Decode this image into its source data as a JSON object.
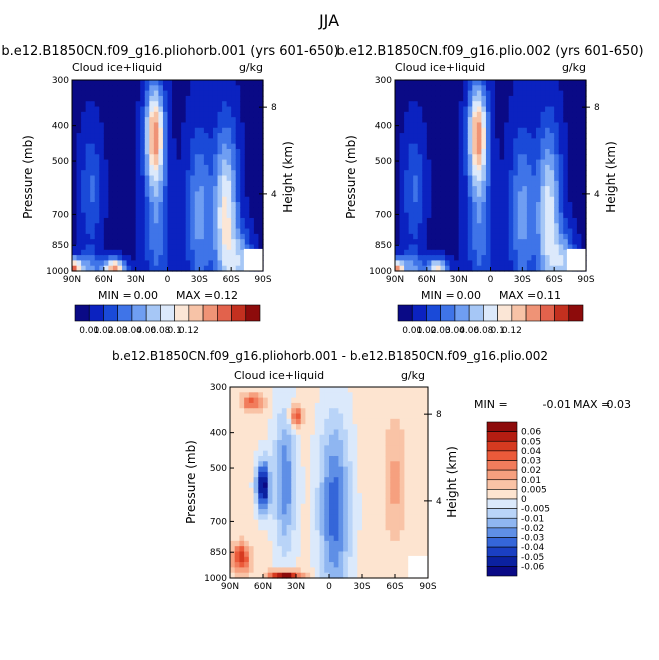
{
  "figure": {
    "title": "JJA",
    "unit": "g/kg",
    "field_name": "Cloud ice+liquid"
  },
  "chart_data": [
    {
      "type": "heatmap",
      "title": "b.e12.B1850CN.f09_g16.pliohorb.001 (yrs 601-650)",
      "subtitle": "Cloud ice+liquid",
      "unit_label": "g/kg",
      "xlabel": "",
      "ylabel": "Pressure (mb)",
      "y2label": "Height (km)",
      "x_ticks": [
        "90N",
        "60N",
        "30N",
        "0",
        "30S",
        "60S",
        "90S"
      ],
      "x_values": [
        90,
        60,
        30,
        0,
        -30,
        -60,
        -90
      ],
      "y_ticks": [
        "300",
        "400",
        "500",
        "700",
        "850",
        "1000"
      ],
      "y_values": [
        300,
        400,
        500,
        700,
        850,
        1000
      ],
      "y2_ticks": [
        "8",
        "4"
      ],
      "y2_pressure": [
        356,
        615
      ],
      "ylim": [
        300,
        1000
      ],
      "xlim": [
        90,
        -90
      ],
      "stats": {
        "min_label": "MIN =",
        "min": "0.00",
        "max_label": "MAX =",
        "max": "0.12"
      },
      "colorbar": {
        "levels": [
          "0.01",
          "0.02",
          "0.03",
          "0.04",
          "0.06",
          "0.08",
          "0.1",
          "0.12"
        ],
        "colors": [
          "#0a0a86",
          "#0b22c0",
          "#1a4ad8",
          "#3f74e8",
          "#6f9ef2",
          "#a6c7f6",
          "#dce9fb",
          "#fbe6d6",
          "#f7c3a7",
          "#ef9376",
          "#e2624c",
          "#c3301f",
          "#8d0b0b"
        ]
      },
      "features": [
        {
          "lat": 75,
          "p": 1000,
          "w": 12,
          "h": 60,
          "v": 0.3
        },
        {
          "lat": 72,
          "p": 600,
          "w": 10,
          "h": 220,
          "v": 0.2
        },
        {
          "lat": 50,
          "p": 985,
          "w": 10,
          "h": 35,
          "v": 0.75
        },
        {
          "lat": 12,
          "p": 420,
          "w": 9,
          "h": 180,
          "v": 0.72
        },
        {
          "lat": 10,
          "p": 750,
          "w": 12,
          "h": 260,
          "v": 0.25
        },
        {
          "lat": -30,
          "p": 700,
          "w": 12,
          "h": 320,
          "v": 0.3
        },
        {
          "lat": -55,
          "p": 720,
          "w": 11,
          "h": 330,
          "v": 0.55
        },
        {
          "lat": -70,
          "p": 950,
          "w": 10,
          "h": 110,
          "v": 0.35
        },
        {
          "lat": 88,
          "p": 990,
          "w": 6,
          "h": 40,
          "v": 0.7
        }
      ]
    },
    {
      "type": "heatmap",
      "title": "b.e12.B1850CN.f09_g16.plio.002 (yrs 601-650)",
      "subtitle": "Cloud ice+liquid",
      "unit_label": "g/kg",
      "xlabel": "",
      "ylabel": "Pressure (mb)",
      "y2label": "Height (km)",
      "x_ticks": [
        "90N",
        "60N",
        "30N",
        "0",
        "30S",
        "60S",
        "90S"
      ],
      "x_values": [
        90,
        60,
        30,
        0,
        -30,
        -60,
        -90
      ],
      "y_ticks": [
        "300",
        "400",
        "500",
        "700",
        "850",
        "1000"
      ],
      "y_values": [
        300,
        400,
        500,
        700,
        850,
        1000
      ],
      "y2_ticks": [
        "8",
        "4"
      ],
      "y2_pressure": [
        356,
        615
      ],
      "ylim": [
        300,
        1000
      ],
      "xlim": [
        90,
        -90
      ],
      "stats": {
        "min_label": "MIN =",
        "min": "0.00",
        "max_label": "MAX =",
        "max": "0.11"
      },
      "colorbar": {
        "levels": [
          "0.01",
          "0.02",
          "0.03",
          "0.04",
          "0.06",
          "0.08",
          "0.1",
          "0.12"
        ],
        "colors": [
          "#0a0a86",
          "#0b22c0",
          "#1a4ad8",
          "#3f74e8",
          "#6f9ef2",
          "#a6c7f6",
          "#dce9fb",
          "#fbe6d6",
          "#f7c3a7",
          "#ef9376",
          "#e2624c",
          "#c3301f",
          "#8d0b0b"
        ]
      },
      "features": [
        {
          "lat": 75,
          "p": 1000,
          "w": 12,
          "h": 60,
          "v": 0.3
        },
        {
          "lat": 72,
          "p": 600,
          "w": 10,
          "h": 220,
          "v": 0.2
        },
        {
          "lat": 50,
          "p": 985,
          "w": 10,
          "h": 35,
          "v": 0.55
        },
        {
          "lat": 12,
          "p": 420,
          "w": 9,
          "h": 180,
          "v": 0.72
        },
        {
          "lat": 10,
          "p": 750,
          "w": 12,
          "h": 260,
          "v": 0.25
        },
        {
          "lat": -30,
          "p": 700,
          "w": 12,
          "h": 320,
          "v": 0.3
        },
        {
          "lat": -55,
          "p": 720,
          "w": 11,
          "h": 330,
          "v": 0.5
        },
        {
          "lat": -70,
          "p": 950,
          "w": 10,
          "h": 110,
          "v": 0.35
        },
        {
          "lat": 88,
          "p": 990,
          "w": 6,
          "h": 40,
          "v": 0.62
        }
      ]
    },
    {
      "type": "heatmap",
      "title": "b.e12.B1850CN.f09_g16.pliohorb.001 - b.e12.B1850CN.f09_g16.plio.002",
      "subtitle": "Cloud ice+liquid",
      "unit_label": "g/kg",
      "xlabel": "",
      "ylabel": "Pressure (mb)",
      "y2label": "Height (km)",
      "x_ticks": [
        "90N",
        "60N",
        "30N",
        "0",
        "30S",
        "60S",
        "90S"
      ],
      "x_values": [
        90,
        60,
        30,
        0,
        -30,
        -60,
        -90
      ],
      "y_ticks": [
        "300",
        "400",
        "500",
        "700",
        "850",
        "1000"
      ],
      "y_values": [
        300,
        400,
        500,
        700,
        850,
        1000
      ],
      "y2_ticks": [
        "8",
        "4"
      ],
      "y2_pressure": [
        356,
        615
      ],
      "ylim": [
        300,
        1000
      ],
      "xlim": [
        90,
        -90
      ],
      "stats": {
        "min_label": "MIN =",
        "min": "-0.01",
        "max_label": "MAX =",
        "max": "0.03"
      },
      "colorbar": {
        "levels": [
          "0.06",
          "0.05",
          "0.04",
          "0.03",
          "0.02",
          "0.01",
          "0.005",
          "0",
          "-0.005",
          "-0.01",
          "-0.02",
          "-0.03",
          "-0.04",
          "-0.05",
          "-0.06"
        ],
        "colors": [
          "#8d0b0b",
          "#b41d12",
          "#d63a20",
          "#eb5a3a",
          "#f17c5c",
          "#f6a07f",
          "#f9c3a6",
          "#fde4d0",
          "#dbe9fb",
          "#b9d4f8",
          "#8fb6f1",
          "#5f8fe6",
          "#3566d9",
          "#1a3fc2",
          "#0b21a0",
          "#0a0a86"
        ]
      },
      "features": [
        {
          "lat": 70,
          "p": 330,
          "w": 10,
          "h": 30,
          "v": 0.25,
          "s": 1
        },
        {
          "lat": 60,
          "p": 560,
          "w": 6,
          "h": 90,
          "v": 0.5,
          "s": -1
        },
        {
          "lat": 40,
          "p": 540,
          "w": 10,
          "h": 260,
          "v": 0.25,
          "s": -1
        },
        {
          "lat": -5,
          "p": 650,
          "w": 14,
          "h": 330,
          "v": 0.3,
          "s": -1
        },
        {
          "lat": 80,
          "p": 880,
          "w": 8,
          "h": 50,
          "v": 0.35,
          "s": 1
        },
        {
          "lat": 40,
          "p": 990,
          "w": 14,
          "h": 20,
          "v": 0.5,
          "s": 1
        },
        {
          "lat": 30,
          "p": 360,
          "w": 6,
          "h": 40,
          "v": 0.3,
          "s": 1
        },
        {
          "lat": -60,
          "p": 540,
          "w": 10,
          "h": 220,
          "v": 0.12,
          "s": 1
        }
      ]
    }
  ]
}
